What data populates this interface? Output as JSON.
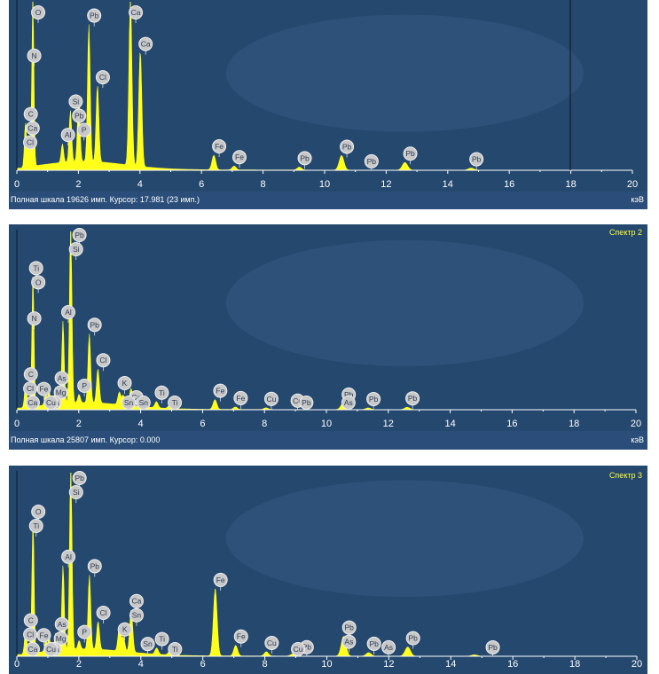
{
  "colors": {
    "background": "#25486f",
    "trace": "#ffff1a",
    "axis": "#ffffff",
    "marker": "#c8c8c8",
    "cursor": "#111111",
    "label_name": "#ffff33"
  },
  "panels": [
    {
      "spectrum_name": "",
      "status": "Полная шкала 19626 имп. Курсор: 17.981  (23 имп.)",
      "unit": "кэВ"
    },
    {
      "spectrum_name": "Спектр 2",
      "status": "Полная шкала 25807 имп. Курсор: 0.000",
      "unit": "кэВ"
    },
    {
      "spectrum_name": "Спектр 3",
      "status": "",
      "unit": ""
    }
  ],
  "chart_data": [
    {
      "type": "line",
      "title": "",
      "xlabel": "кэВ",
      "xlim": [
        0,
        20
      ],
      "xticks": [
        0,
        2,
        4,
        6,
        8,
        10,
        12,
        14,
        16,
        18,
        20
      ],
      "ylim": [
        0,
        19626
      ],
      "cursor_x": 17.981,
      "peaks": [
        [
          0.28,
          5200
        ],
        [
          0.39,
          2700
        ],
        [
          0.52,
          19600
        ],
        [
          1.48,
          2200
        ],
        [
          1.74,
          6000
        ],
        [
          2.01,
          7500
        ],
        [
          2.34,
          16000
        ],
        [
          2.62,
          9000
        ],
        [
          3.69,
          19600
        ],
        [
          4.01,
          13500
        ],
        [
          6.4,
          1700
        ],
        [
          7.06,
          450
        ],
        [
          9.18,
          350
        ],
        [
          10.55,
          1700
        ],
        [
          12.61,
          900
        ],
        [
          14.76,
          250
        ]
      ],
      "element_markers": [
        {
          "label": "O",
          "x": 0.52
        },
        {
          "label": "C",
          "x": 0.28
        },
        {
          "label": "Ca",
          "x": 0.34
        },
        {
          "label": "Cl",
          "x": 0.26
        },
        {
          "label": "N",
          "x": 0.39
        },
        {
          "label": "Al",
          "x": 1.49
        },
        {
          "label": "Si",
          "x": 1.74
        },
        {
          "label": "Pb",
          "x": 1.85
        },
        {
          "label": "P",
          "x": 2.01
        },
        {
          "label": "Pb",
          "x": 2.34
        },
        {
          "label": "Cl",
          "x": 2.62
        },
        {
          "label": "Ca",
          "x": 3.69
        },
        {
          "label": "Ca",
          "x": 4.01
        },
        {
          "label": "Fe",
          "x": 6.4
        },
        {
          "label": "Fe",
          "x": 7.06
        },
        {
          "label": "Pb",
          "x": 9.18
        },
        {
          "label": "Pb",
          "x": 10.55
        },
        {
          "label": "Pb",
          "x": 11.35
        },
        {
          "label": "Pb",
          "x": 12.61
        },
        {
          "label": "Pb",
          "x": 14.76
        }
      ]
    },
    {
      "type": "line",
      "title": "Спектр 2",
      "xlabel": "кэВ",
      "xlim": [
        0,
        20
      ],
      "xticks": [
        0,
        2,
        4,
        6,
        8,
        10,
        12,
        14,
        16,
        18,
        20
      ],
      "ylim": [
        0,
        25807
      ],
      "peaks": [
        [
          0.28,
          3500
        ],
        [
          0.39,
          1500
        ],
        [
          0.52,
          19000
        ],
        [
          0.93,
          1500
        ],
        [
          1.04,
          2000
        ],
        [
          1.25,
          2500
        ],
        [
          1.49,
          12000
        ],
        [
          1.74,
          25800
        ],
        [
          2.01,
          1200
        ],
        [
          2.34,
          10000
        ],
        [
          2.62,
          5000
        ],
        [
          3.31,
          1800
        ],
        [
          3.69,
          2500
        ],
        [
          3.44,
          1400
        ],
        [
          4.51,
          900
        ],
        [
          4.93,
          400
        ],
        [
          6.4,
          1400
        ],
        [
          7.06,
          350
        ],
        [
          8.05,
          250
        ],
        [
          10.54,
          900
        ],
        [
          11.35,
          250
        ],
        [
          12.61,
          350
        ]
      ],
      "element_markers": [
        {
          "label": "Ti",
          "x": 0.45
        },
        {
          "label": "Pb",
          "x": 1.85
        },
        {
          "label": "Fe",
          "x": 0.7
        },
        {
          "label": "Si",
          "x": 1.74
        },
        {
          "label": "O",
          "x": 0.52
        },
        {
          "label": "Al",
          "x": 1.49
        },
        {
          "label": "C",
          "x": 0.28
        },
        {
          "label": "K",
          "x": 0.34
        },
        {
          "label": "As",
          "x": 1.28
        },
        {
          "label": "Pb",
          "x": 2.34
        },
        {
          "label": "Ca",
          "x": 0.34
        },
        {
          "label": "Mg",
          "x": 1.25
        },
        {
          "label": "K",
          "x": 3.31
        },
        {
          "label": "Ca",
          "x": 3.69
        },
        {
          "label": "N",
          "x": 0.39
        },
        {
          "label": "Na",
          "x": 1.04
        },
        {
          "label": "Cl",
          "x": 2.62
        },
        {
          "label": "Sn",
          "x": 3.44
        },
        {
          "label": "Ti",
          "x": 4.51
        },
        {
          "label": "Cl",
          "x": 0.26
        },
        {
          "label": "Cu",
          "x": 0.93
        },
        {
          "label": "P",
          "x": 2.01
        },
        {
          "label": "Sn",
          "x": 3.92
        },
        {
          "label": "Ti",
          "x": 4.93
        },
        {
          "label": "Fe",
          "x": 6.4
        },
        {
          "label": "Fe",
          "x": 7.06
        },
        {
          "label": "Cu",
          "x": 8.05
        },
        {
          "label": "Cu",
          "x": 8.9
        },
        {
          "label": "Pb",
          "x": 9.18
        },
        {
          "label": "Pb",
          "x": 10.55
        },
        {
          "label": "As",
          "x": 10.54
        },
        {
          "label": "Pb",
          "x": 11.35
        },
        {
          "label": "Pb",
          "x": 12.61
        }
      ]
    },
    {
      "type": "line",
      "title": "Спектр 3",
      "xlabel": "",
      "xlim": [
        0,
        20
      ],
      "xticks": [
        0,
        2,
        4,
        6,
        8,
        10,
        12,
        14,
        16,
        18,
        20
      ],
      "ylim": [
        0,
        26000
      ],
      "peaks": [
        [
          0.28,
          3500
        ],
        [
          0.39,
          1500
        ],
        [
          0.52,
          19000
        ],
        [
          0.93,
          1500
        ],
        [
          1.04,
          2000
        ],
        [
          1.25,
          2500
        ],
        [
          1.49,
          12000
        ],
        [
          1.74,
          26000
        ],
        [
          2.01,
          1200
        ],
        [
          2.34,
          10500
        ],
        [
          2.62,
          4000
        ],
        [
          3.31,
          3500
        ],
        [
          3.69,
          6000
        ],
        [
          3.44,
          2000
        ],
        [
          4.51,
          900
        ],
        [
          4.93,
          500
        ],
        [
          6.4,
          9500
        ],
        [
          7.06,
          1500
        ],
        [
          8.05,
          600
        ],
        [
          8.9,
          300
        ],
        [
          10.54,
          2800
        ],
        [
          11.35,
          500
        ],
        [
          12.61,
          1300
        ],
        [
          14.76,
          200
        ]
      ],
      "element_markers": [
        {
          "label": "Pb",
          "x": 1.85
        },
        {
          "label": "O",
          "x": 0.52
        },
        {
          "label": "Si",
          "x": 1.74
        },
        {
          "label": "Ti",
          "x": 0.45
        },
        {
          "label": "Fe",
          "x": 0.7
        },
        {
          "label": "C",
          "x": 0.28
        },
        {
          "label": "Al",
          "x": 1.49
        },
        {
          "label": "K",
          "x": 0.34
        },
        {
          "label": "As",
          "x": 1.28
        },
        {
          "label": "Pb",
          "x": 2.34
        },
        {
          "label": "Ca",
          "x": 3.69
        },
        {
          "label": "Fe",
          "x": 6.4
        },
        {
          "label": "Ca",
          "x": 0.34
        },
        {
          "label": "Mg",
          "x": 1.25
        },
        {
          "label": "Sn",
          "x": 3.69
        },
        {
          "label": "Cl",
          "x": 0.26
        },
        {
          "label": "Na",
          "x": 1.04
        },
        {
          "label": "Cl",
          "x": 2.62
        },
        {
          "label": "K",
          "x": 3.31
        },
        {
          "label": "Ti",
          "x": 4.51
        },
        {
          "label": "Pb",
          "x": 9.18
        },
        {
          "label": "Pb",
          "x": 10.55
        },
        {
          "label": "Cu",
          "x": 0.93
        },
        {
          "label": "P",
          "x": 2.01
        },
        {
          "label": "Sn",
          "x": 4.05
        },
        {
          "label": "Ti",
          "x": 4.93
        },
        {
          "label": "Fe",
          "x": 7.06
        },
        {
          "label": "Cu",
          "x": 8.05
        },
        {
          "label": "Cu",
          "x": 8.9
        },
        {
          "label": "As",
          "x": 10.54
        },
        {
          "label": "As",
          "x": 11.82
        },
        {
          "label": "Pb",
          "x": 11.35
        },
        {
          "label": "Pb",
          "x": 12.61
        },
        {
          "label": "Pb",
          "x": 15.18
        }
      ]
    }
  ]
}
